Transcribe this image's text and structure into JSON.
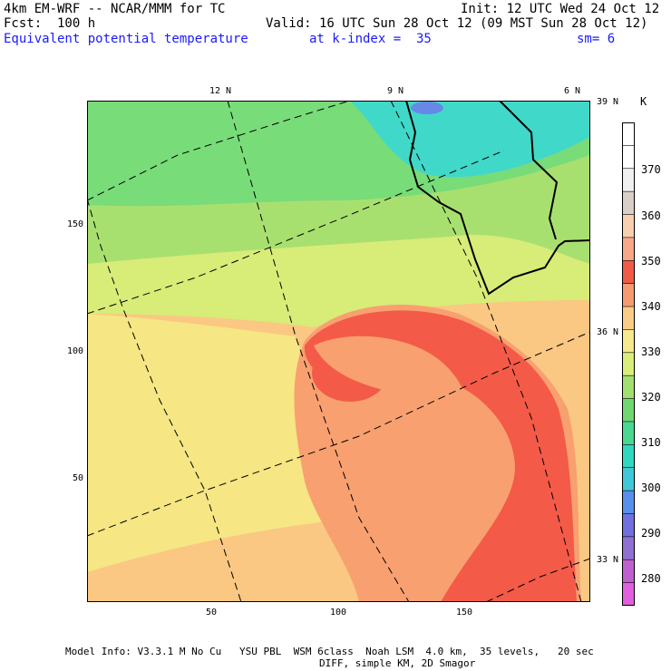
{
  "header": {
    "model": "4km EM-WRF -- NCAR/MMM for TC",
    "forecast": "Fcst:  100 h",
    "init": "Init: 12 UTC Wed 24 Oct 12",
    "valid": "Valid: 16 UTC Sun 28 Oct 12 (09 MST Sun 28 Oct 12)",
    "field": "Equivalent potential temperature",
    "level": "at k-index =  35",
    "smoothing": "sm= 6"
  },
  "map": {
    "x_ticks": [
      "50",
      "100",
      "150"
    ],
    "y_ticks": [
      "50",
      "100",
      "150"
    ],
    "lon_labels": [
      "12 N",
      "9 N",
      "6 N"
    ],
    "lat_labels": [
      "39 N",
      "36 N",
      "33 N"
    ],
    "x_range": [
      0,
      200
    ],
    "y_range": [
      0,
      200
    ],
    "colors": {
      "teal": "#40d8c8",
      "green1": "#50d090",
      "green2": "#78dc78",
      "lightgreen": "#a8e070",
      "yellowgreen": "#d8ec78",
      "yellow": "#f6e684",
      "lightorange": "#fac882",
      "orange": "#f8a070",
      "red": "#f45a48",
      "blue": "#6888e8"
    }
  },
  "colorbar": {
    "unit": "K",
    "labels": [
      "370",
      "360",
      "350",
      "340",
      "330",
      "320",
      "310",
      "300",
      "290",
      "280"
    ],
    "colors": [
      "#ffffff",
      "#ffffff",
      "#f0f0f0",
      "#d8d0c8",
      "#f8d0b0",
      "#f8a888",
      "#f25a48",
      "#f89a70",
      "#facc88",
      "#f6e88c",
      "#d8ee78",
      "#a0e070",
      "#70d870",
      "#48d890",
      "#30d8c0",
      "#40c8d8",
      "#5890ee",
      "#7070e0",
      "#9070d0",
      "#c060d0",
      "#e060e0"
    ]
  },
  "footer": {
    "line1": "Model Info: V3.3.1 M No Cu   YSU PBL  WSM 6class  Noah LSM  4.0 km,  35 levels,   20 sec",
    "line2": "DIFF, simple KM, 2D Smagor"
  }
}
